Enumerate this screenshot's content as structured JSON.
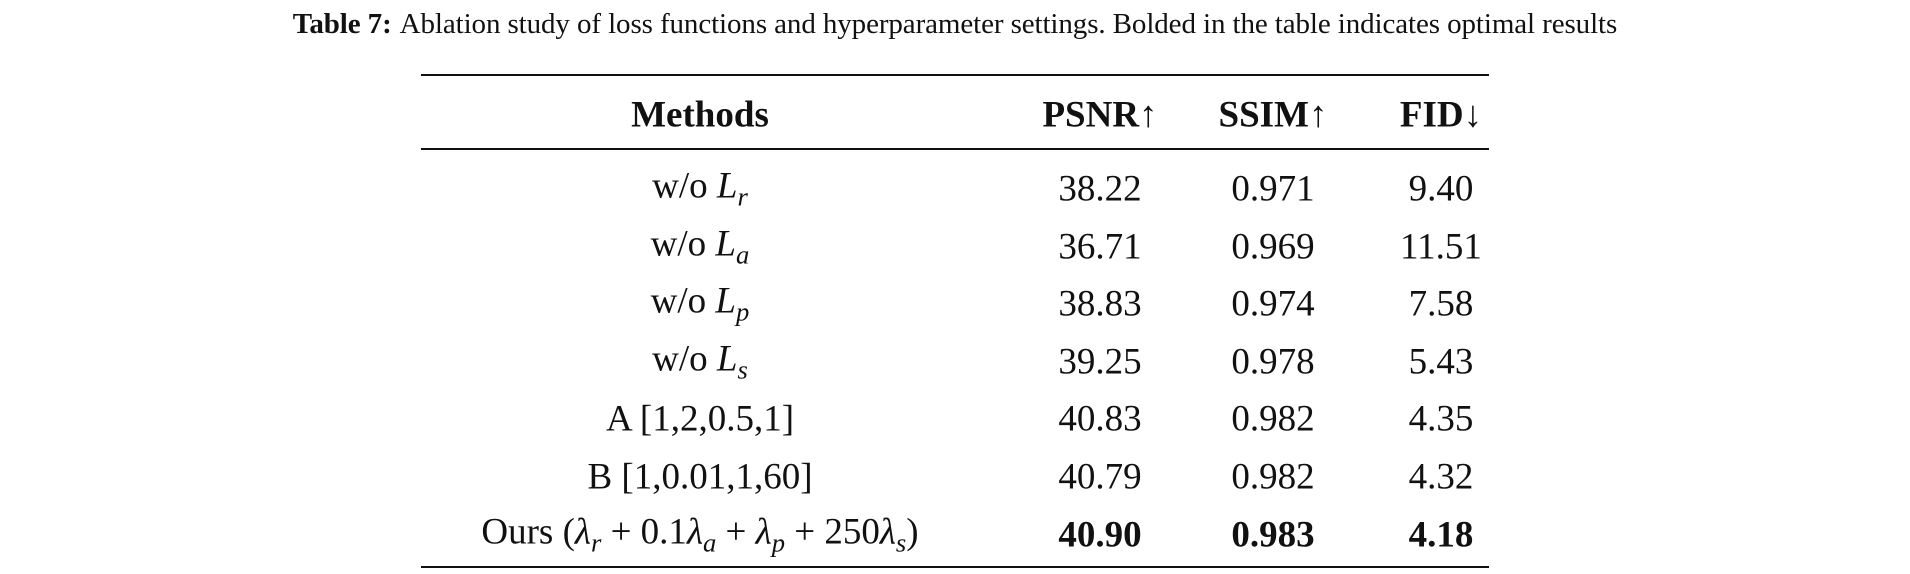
{
  "caption": {
    "label": "Table 7:",
    "text": "Ablation study of loss functions and hyperparameter settings. Bolded in the table indicates optimal results"
  },
  "table": {
    "header": [
      "Methods",
      "PSNR↑",
      "SSIM↑",
      "FID↓"
    ],
    "rows": [
      {
        "method": [
          {
            "text": "w/o ",
            "style": "normal"
          },
          {
            "text": "L",
            "style": "italic"
          },
          {
            "text": "r",
            "style": "sub"
          }
        ],
        "values": [
          "38.22",
          "0.971",
          "9.40"
        ]
      },
      {
        "method": [
          {
            "text": "w/o ",
            "style": "normal"
          },
          {
            "text": "L",
            "style": "italic"
          },
          {
            "text": "a",
            "style": "sub"
          }
        ],
        "values": [
          "36.71",
          "0.969",
          "11.51"
        ]
      },
      {
        "method": [
          {
            "text": "w/o ",
            "style": "normal"
          },
          {
            "text": "L",
            "style": "italic"
          },
          {
            "text": "p",
            "style": "sub"
          }
        ],
        "values": [
          "38.83",
          "0.974",
          "7.58"
        ]
      },
      {
        "method": [
          {
            "text": "w/o ",
            "style": "normal"
          },
          {
            "text": "L",
            "style": "italic"
          },
          {
            "text": "s",
            "style": "sub"
          }
        ],
        "values": [
          "39.25",
          "0.978",
          "5.43"
        ]
      },
      {
        "method": [
          {
            "text": "A [1,2,0.5,1]",
            "style": "normal"
          }
        ],
        "values": [
          "40.83",
          "0.982",
          "4.35"
        ]
      },
      {
        "method": [
          {
            "text": "B [1,0.01,1,60]",
            "style": "normal"
          }
        ],
        "values": [
          "40.79",
          "0.982",
          "4.32"
        ]
      },
      {
        "method": [
          {
            "text": "Ours (",
            "style": "normal"
          },
          {
            "text": "λ",
            "style": "italic"
          },
          {
            "text": "r",
            "style": "sub"
          },
          {
            "text": " + 0.1",
            "style": "normal"
          },
          {
            "text": "λ",
            "style": "italic"
          },
          {
            "text": "a",
            "style": "sub"
          },
          {
            "text": " + ",
            "style": "normal"
          },
          {
            "text": "λ",
            "style": "italic"
          },
          {
            "text": "p",
            "style": "sub"
          },
          {
            "text": " + 250",
            "style": "normal"
          },
          {
            "text": "λ",
            "style": "italic"
          },
          {
            "text": "s",
            "style": "sub"
          },
          {
            "text": ")",
            "style": "normal"
          }
        ],
        "values": [
          "40.90",
          "0.983",
          "4.18"
        ],
        "bold": true
      }
    ]
  }
}
